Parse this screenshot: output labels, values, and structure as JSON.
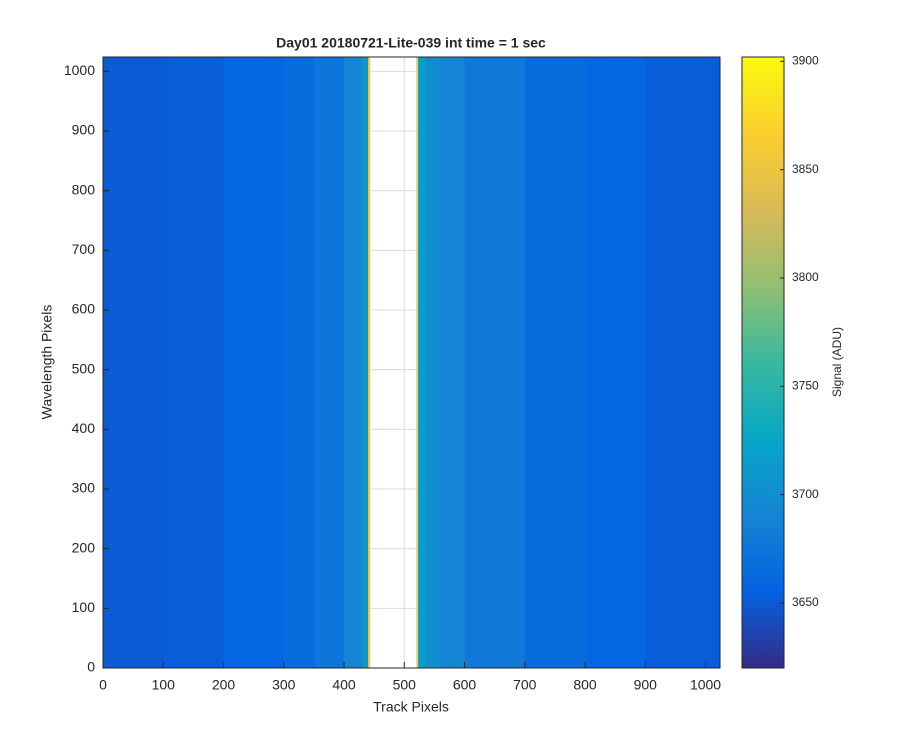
{
  "chart_data": {
    "type": "heatmap",
    "title": "Day01 20180721-Lite-039 int time = 1 sec",
    "x_label": "Track Pixels",
    "y_label": "Wavelength Pixels",
    "colorbar_label": "Signal (ADU)",
    "xbins": [
      0,
      100,
      200,
      300,
      350,
      400,
      430,
      440,
      443,
      520,
      523,
      535,
      560,
      600,
      700,
      800,
      900,
      1024
    ],
    "values": [
      3650,
      3652,
      3658,
      3665,
      3675,
      3690,
      3710,
      3860,
      null,
      3860,
      3715,
      3700,
      3690,
      3678,
      3665,
      3658,
      3652
    ],
    "xlim": [
      0,
      1024
    ],
    "ylim": [
      0,
      1024
    ],
    "xticks": [
      0,
      100,
      200,
      300,
      400,
      500,
      600,
      700,
      800,
      900,
      1000
    ],
    "yticks": [
      0,
      100,
      200,
      300,
      400,
      500,
      600,
      700,
      800,
      900,
      1000
    ],
    "clim": [
      3620,
      3902
    ],
    "cticks": [
      3650,
      3700,
      3750,
      3800,
      3850,
      3900
    ],
    "colormap": [
      "#352a87",
      "#0363e1",
      "#1485d4",
      "#06a7c6",
      "#38b99e",
      "#92bf73",
      "#d9ba56",
      "#fcce2e",
      "#f9fb0e"
    ],
    "grid": true
  }
}
